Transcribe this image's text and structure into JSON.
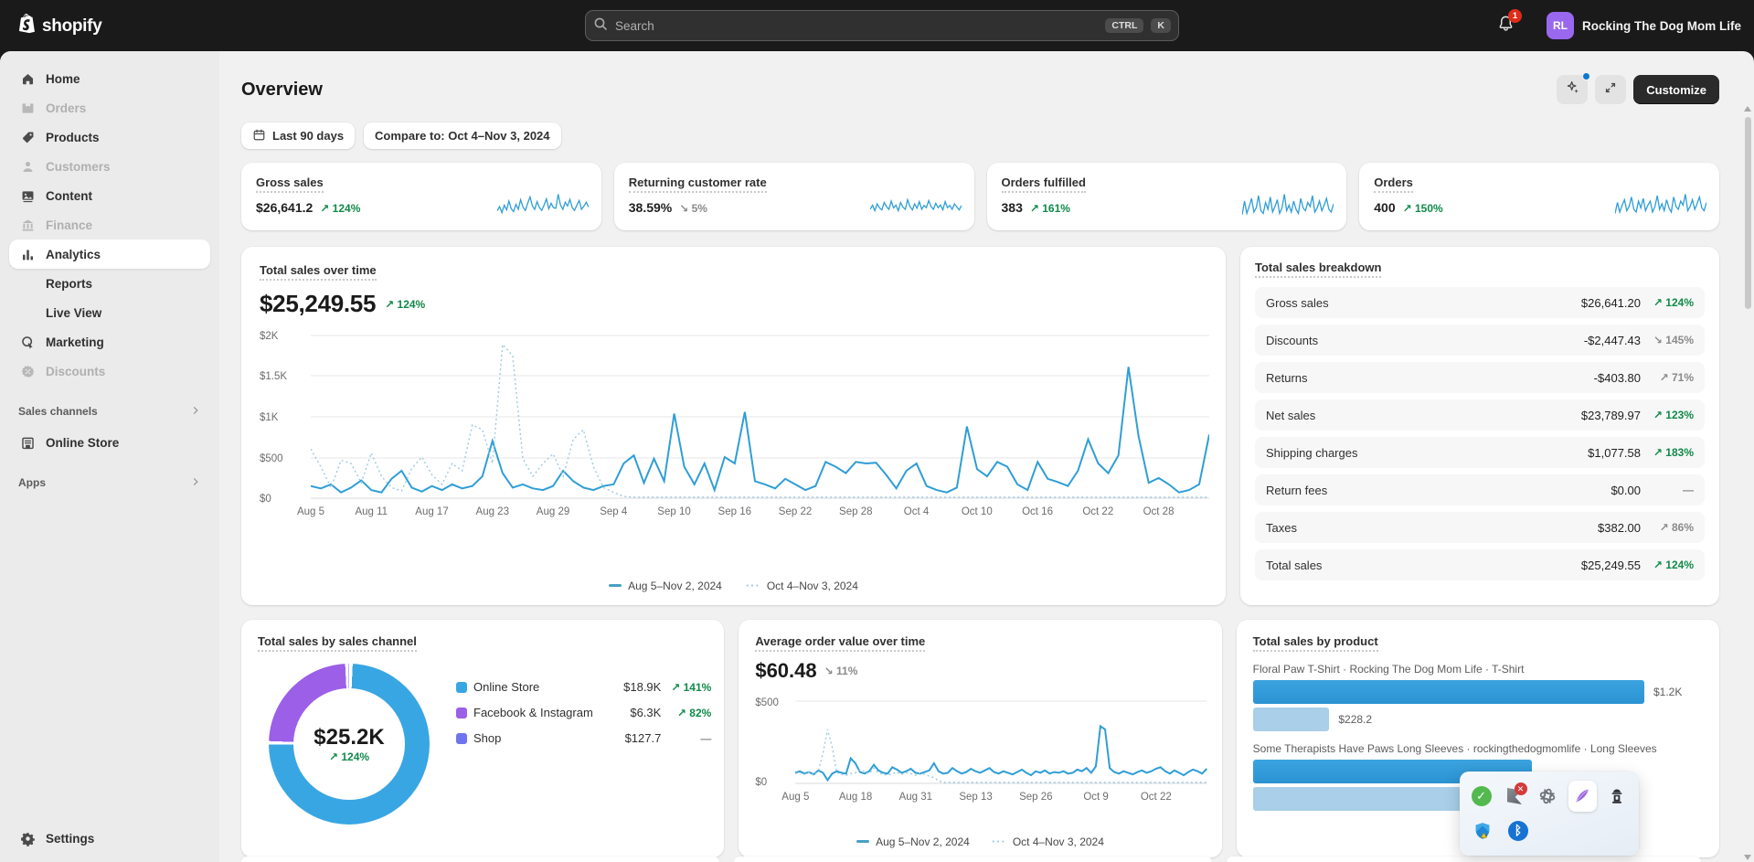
{
  "topbar": {
    "brand": "shopify",
    "search_placeholder": "Search",
    "kbd": [
      "CTRL",
      "K"
    ],
    "notification_count": "1",
    "account_initials": "RL",
    "account_name": "Rocking The Dog Mom Life"
  },
  "sidebar": {
    "items": [
      {
        "label": "Home"
      },
      {
        "label": "Orders"
      },
      {
        "label": "Products"
      },
      {
        "label": "Customers"
      },
      {
        "label": "Content"
      },
      {
        "label": "Finance"
      },
      {
        "label": "Analytics"
      },
      {
        "label": "Reports"
      },
      {
        "label": "Live View"
      },
      {
        "label": "Marketing"
      },
      {
        "label": "Discounts"
      }
    ],
    "sales_channels_label": "Sales channels",
    "online_store_label": "Online Store",
    "apps_label": "Apps",
    "settings_label": "Settings"
  },
  "header": {
    "title": "Overview",
    "customize_label": "Customize"
  },
  "filters": {
    "date_range": "Last 90 days",
    "compare": "Compare to: Oct 4–Nov 3, 2024"
  },
  "metrics": [
    {
      "label": "Gross sales",
      "value": "$26,641.2",
      "delta": "↗ 124%",
      "tone": "positive"
    },
    {
      "label": "Returning customer rate",
      "value": "38.59%",
      "delta": "↘ 5%",
      "tone": "neutral"
    },
    {
      "label": "Orders fulfilled",
      "value": "383",
      "delta": "↗ 161%",
      "tone": "positive"
    },
    {
      "label": "Orders",
      "value": "400",
      "delta": "↗ 150%",
      "tone": "positive"
    }
  ],
  "total_sales": {
    "title": "Total sales over time",
    "value": "$25,249.55",
    "delta": "↗ 124%"
  },
  "breakdown": {
    "title": "Total sales breakdown",
    "rows": [
      {
        "label": "Gross sales",
        "value": "$26,641.20",
        "delta": "↗ 124%",
        "tone": "positive"
      },
      {
        "label": "Discounts",
        "value": "-$2,447.43",
        "delta": "↘ 145%",
        "tone": "neutral"
      },
      {
        "label": "Returns",
        "value": "-$403.80",
        "delta": "↗ 71%",
        "tone": "neutral"
      },
      {
        "label": "Net sales",
        "value": "$23,789.97",
        "delta": "↗ 123%",
        "tone": "positive"
      },
      {
        "label": "Shipping charges",
        "value": "$1,077.58",
        "delta": "↗ 183%",
        "tone": "positive"
      },
      {
        "label": "Return fees",
        "value": "$0.00",
        "delta": "—",
        "tone": "neutral"
      },
      {
        "label": "Taxes",
        "value": "$382.00",
        "delta": "↗ 86%",
        "tone": "neutral"
      },
      {
        "label": "Total sales",
        "value": "$25,249.55",
        "delta": "↗ 124%",
        "tone": "positive"
      }
    ]
  },
  "sales_channel": {
    "title": "Total sales by sales channel",
    "center_value": "$25.2K",
    "center_delta": "↗ 124%",
    "legend": [
      {
        "label": "Online Store",
        "value": "$18.9K",
        "delta": "↗ 141%",
        "tone": "positive"
      },
      {
        "label": "Facebook & Instagram",
        "value": "$6.3K",
        "delta": "↗ 82%",
        "tone": "positive"
      },
      {
        "label": "Shop",
        "value": "$127.7",
        "delta": "—",
        "tone": "neutral"
      }
    ]
  },
  "aov": {
    "title": "Average order value over time",
    "value": "$60.48",
    "delta": "↘ 11%"
  },
  "by_product": {
    "title": "Total sales by product",
    "products": [
      {
        "name": "Floral Paw T-Shirt · Rocking The Dog Mom Life · T-Shirt",
        "current_label": "$1.2K",
        "previous_label": "$228.2",
        "current_pct": 87,
        "previous_pct": 17
      },
      {
        "name": "Some Therapists Have Paws Long Sleeves · rockingthedogmomlife · Long Sleeves",
        "current_label": "",
        "previous_label": "",
        "current_pct": 62,
        "previous_pct": 62
      }
    ]
  },
  "chart_data": {
    "total_sales_over_time": {
      "type": "line",
      "title": "Total sales over time",
      "ymax": 2000,
      "y_ticks": [
        "$2K",
        "$1.5K",
        "$1K",
        "$500",
        "$0"
      ],
      "x_ticks": [
        "Aug 5",
        "Aug 11",
        "Aug 17",
        "Aug 23",
        "Aug 29",
        "Sep 4",
        "Sep 10",
        "Sep 16",
        "Sep 22",
        "Sep 28",
        "Oct 4",
        "Oct 10",
        "Oct 16",
        "Oct 22",
        "Oct 28"
      ],
      "tick_step_frac": 0.0674,
      "legend": [
        {
          "label": "Aug 5–Nov 2, 2024",
          "style": "solid"
        },
        {
          "label": "Oct 4–Nov 3, 2024",
          "style": "dotted"
        }
      ],
      "series": [
        {
          "name": "Aug 5–Nov 2, 2024",
          "style": "solid",
          "color": "#2f9ed6",
          "values": [
            140,
            110,
            160,
            60,
            120,
            210,
            90,
            60,
            230,
            330,
            120,
            70,
            140,
            90,
            160,
            110,
            140,
            260,
            700,
            300,
            120,
            160,
            110,
            90,
            140,
            330,
            200,
            120,
            90,
            140,
            160,
            420,
            520,
            180,
            480,
            200,
            1040,
            380,
            160,
            420,
            90,
            500,
            420,
            1060,
            200,
            160,
            110,
            230,
            160,
            90,
            140,
            440,
            380,
            300,
            440,
            420,
            430,
            280,
            110,
            330,
            420,
            140,
            90,
            60,
            120,
            880,
            350,
            260,
            440,
            380,
            160,
            90,
            440,
            230,
            190,
            140,
            330,
            720,
            420,
            300,
            520,
            1620,
            760,
            180,
            240,
            160,
            60,
            90,
            160,
            780
          ]
        },
        {
          "name": "Oct 4–Nov 3, 2024",
          "style": "dotted",
          "color": "#9ec9e0",
          "pad_zero_to": 90,
          "values": [
            600,
            380,
            120,
            460,
            420,
            180,
            550,
            260,
            120,
            80,
            360,
            500,
            280,
            160,
            420,
            330,
            900,
            840,
            420,
            1900,
            1760,
            480,
            260,
            420,
            540,
            260,
            720,
            840,
            380,
            120,
            60,
            10
          ]
        }
      ]
    },
    "average_order_value": {
      "type": "line",
      "title": "Average order value over time",
      "ymax": 500,
      "y_ticks": [
        "$500",
        "$0"
      ],
      "x_ticks": [
        "Aug 5",
        "Aug 18",
        "Aug 31",
        "Sep 13",
        "Sep 26",
        "Oct 9",
        "Oct 22"
      ],
      "tick_step_frac": 0.146,
      "legend": [
        {
          "label": "Aug 5–Nov 2, 2024",
          "style": "solid"
        },
        {
          "label": "Oct 4–Nov 3, 2024",
          "style": "dotted"
        }
      ],
      "series": [
        {
          "name": "Aug 5–Nov 2, 2024",
          "style": "solid",
          "color": "#2f9ed6",
          "values": [
            60,
            70,
            55,
            65,
            50,
            75,
            60,
            15,
            55,
            70,
            60,
            55,
            150,
            120,
            65,
            55,
            70,
            110,
            75,
            60,
            55,
            95,
            80,
            60,
            70,
            85,
            60,
            55,
            65,
            75,
            120,
            70,
            55,
            60,
            90,
            70,
            55,
            65,
            85,
            70,
            60,
            75,
            90,
            65,
            55,
            70,
            60,
            50,
            65,
            80,
            60,
            45,
            70,
            60,
            75,
            55,
            65,
            60,
            70,
            55,
            60,
            80,
            70,
            90,
            60,
            100,
            350,
            330,
            90,
            65,
            55,
            70,
            60,
            50,
            65,
            75,
            60,
            70,
            85,
            95,
            70,
            55,
            75,
            60,
            45,
            65,
            80,
            70,
            55,
            85
          ]
        },
        {
          "name": "Oct 4–Nov 3, 2024",
          "style": "dotted",
          "color": "#9ec9e0",
          "pad_zero_to": 90,
          "values": [
            55,
            60,
            50,
            65,
            45,
            70,
            180,
            330,
            220,
            60,
            50,
            45,
            55,
            60,
            80,
            70,
            55,
            90,
            60,
            50,
            45,
            55,
            65,
            50,
            60,
            55,
            45,
            60,
            50,
            40,
            30,
            10
          ]
        }
      ]
    },
    "sales_by_channel": {
      "type": "pie",
      "title": "Total sales by sales channel",
      "slices": [
        {
          "label": "Online Store",
          "value_label": "$18.9K",
          "pct": 74.9,
          "color": "#38a6e3"
        },
        {
          "label": "Facebook & Instagram",
          "value_label": "$6.3K",
          "pct": 24.3,
          "color": "#9b5fe8"
        },
        {
          "label": "Shop",
          "value_label": "$127.7",
          "pct": 0.8,
          "color": "#6f74ee"
        }
      ]
    },
    "sales_by_product": {
      "type": "bar",
      "title": "Total sales by product",
      "bars": [
        {
          "name": "Floral Paw T-Shirt · Rocking The Dog Mom Life · T-Shirt",
          "current_label": "$1.2K",
          "previous_label": "$228.2",
          "current_pct": 87,
          "previous_pct": 17
        },
        {
          "name": "Some Therapists Have Paws Long Sleeves · rockingthedogmomlife · Long Sleeves",
          "current_label": "",
          "previous_label": "",
          "current_pct": 62,
          "previous_pct": 62
        }
      ]
    },
    "sparklines": [
      {
        "name": "Gross sales",
        "color": "#2f9ed6",
        "values": [
          25,
          40,
          18,
          45,
          28,
          60,
          32,
          22,
          48,
          30,
          65,
          38,
          26,
          52,
          75,
          42,
          30,
          58,
          36,
          26,
          46,
          68,
          32,
          52,
          36,
          34,
          85,
          46,
          30,
          56,
          42,
          66,
          36,
          26,
          46,
          62,
          30,
          42,
          56,
          38
        ]
      },
      {
        "name": "Returning customer rate",
        "color": "#2f9ed6",
        "values": [
          30,
          45,
          25,
          50,
          35,
          28,
          55,
          40,
          30,
          60,
          35,
          45,
          25,
          55,
          38,
          30,
          65,
          40,
          28,
          50,
          34,
          58,
          30,
          44,
          36,
          62,
          40,
          30,
          52,
          36,
          46,
          28,
          58,
          36,
          44,
          30,
          50,
          38,
          28,
          44
        ]
      },
      {
        "name": "Orders fulfilled",
        "color": "#2f9ed6",
        "values": [
          10,
          60,
          15,
          40,
          70,
          20,
          35,
          80,
          25,
          15,
          55,
          30,
          75,
          20,
          40,
          65,
          15,
          35,
          85,
          25,
          45,
          20,
          60,
          30,
          15,
          70,
          35,
          25,
          55,
          40,
          80,
          20,
          35,
          60,
          25,
          45,
          70,
          30,
          20,
          50
        ]
      },
      {
        "name": "Orders",
        "color": "#2f9ed6",
        "values": [
          15,
          55,
          20,
          45,
          65,
          25,
          40,
          75,
          30,
          20,
          60,
          35,
          70,
          25,
          45,
          60,
          20,
          40,
          80,
          30,
          50,
          25,
          65,
          35,
          20,
          75,
          40,
          30,
          60,
          45,
          85,
          25,
          40,
          65,
          30,
          50,
          75,
          35,
          25,
          55
        ]
      }
    ]
  },
  "colors": {
    "accent_blue": "#2f9ed6",
    "comparison_blue": "#9ec9e0",
    "positive_green": "#108a49",
    "neutral_grey": "#8a8a8a",
    "avatar_purple": "#9a68ee"
  },
  "overlay_tray": {
    "icons": [
      "check",
      "flag-error",
      "knot",
      "feather",
      "hydrant",
      "defender-shield",
      "bluetooth"
    ]
  }
}
